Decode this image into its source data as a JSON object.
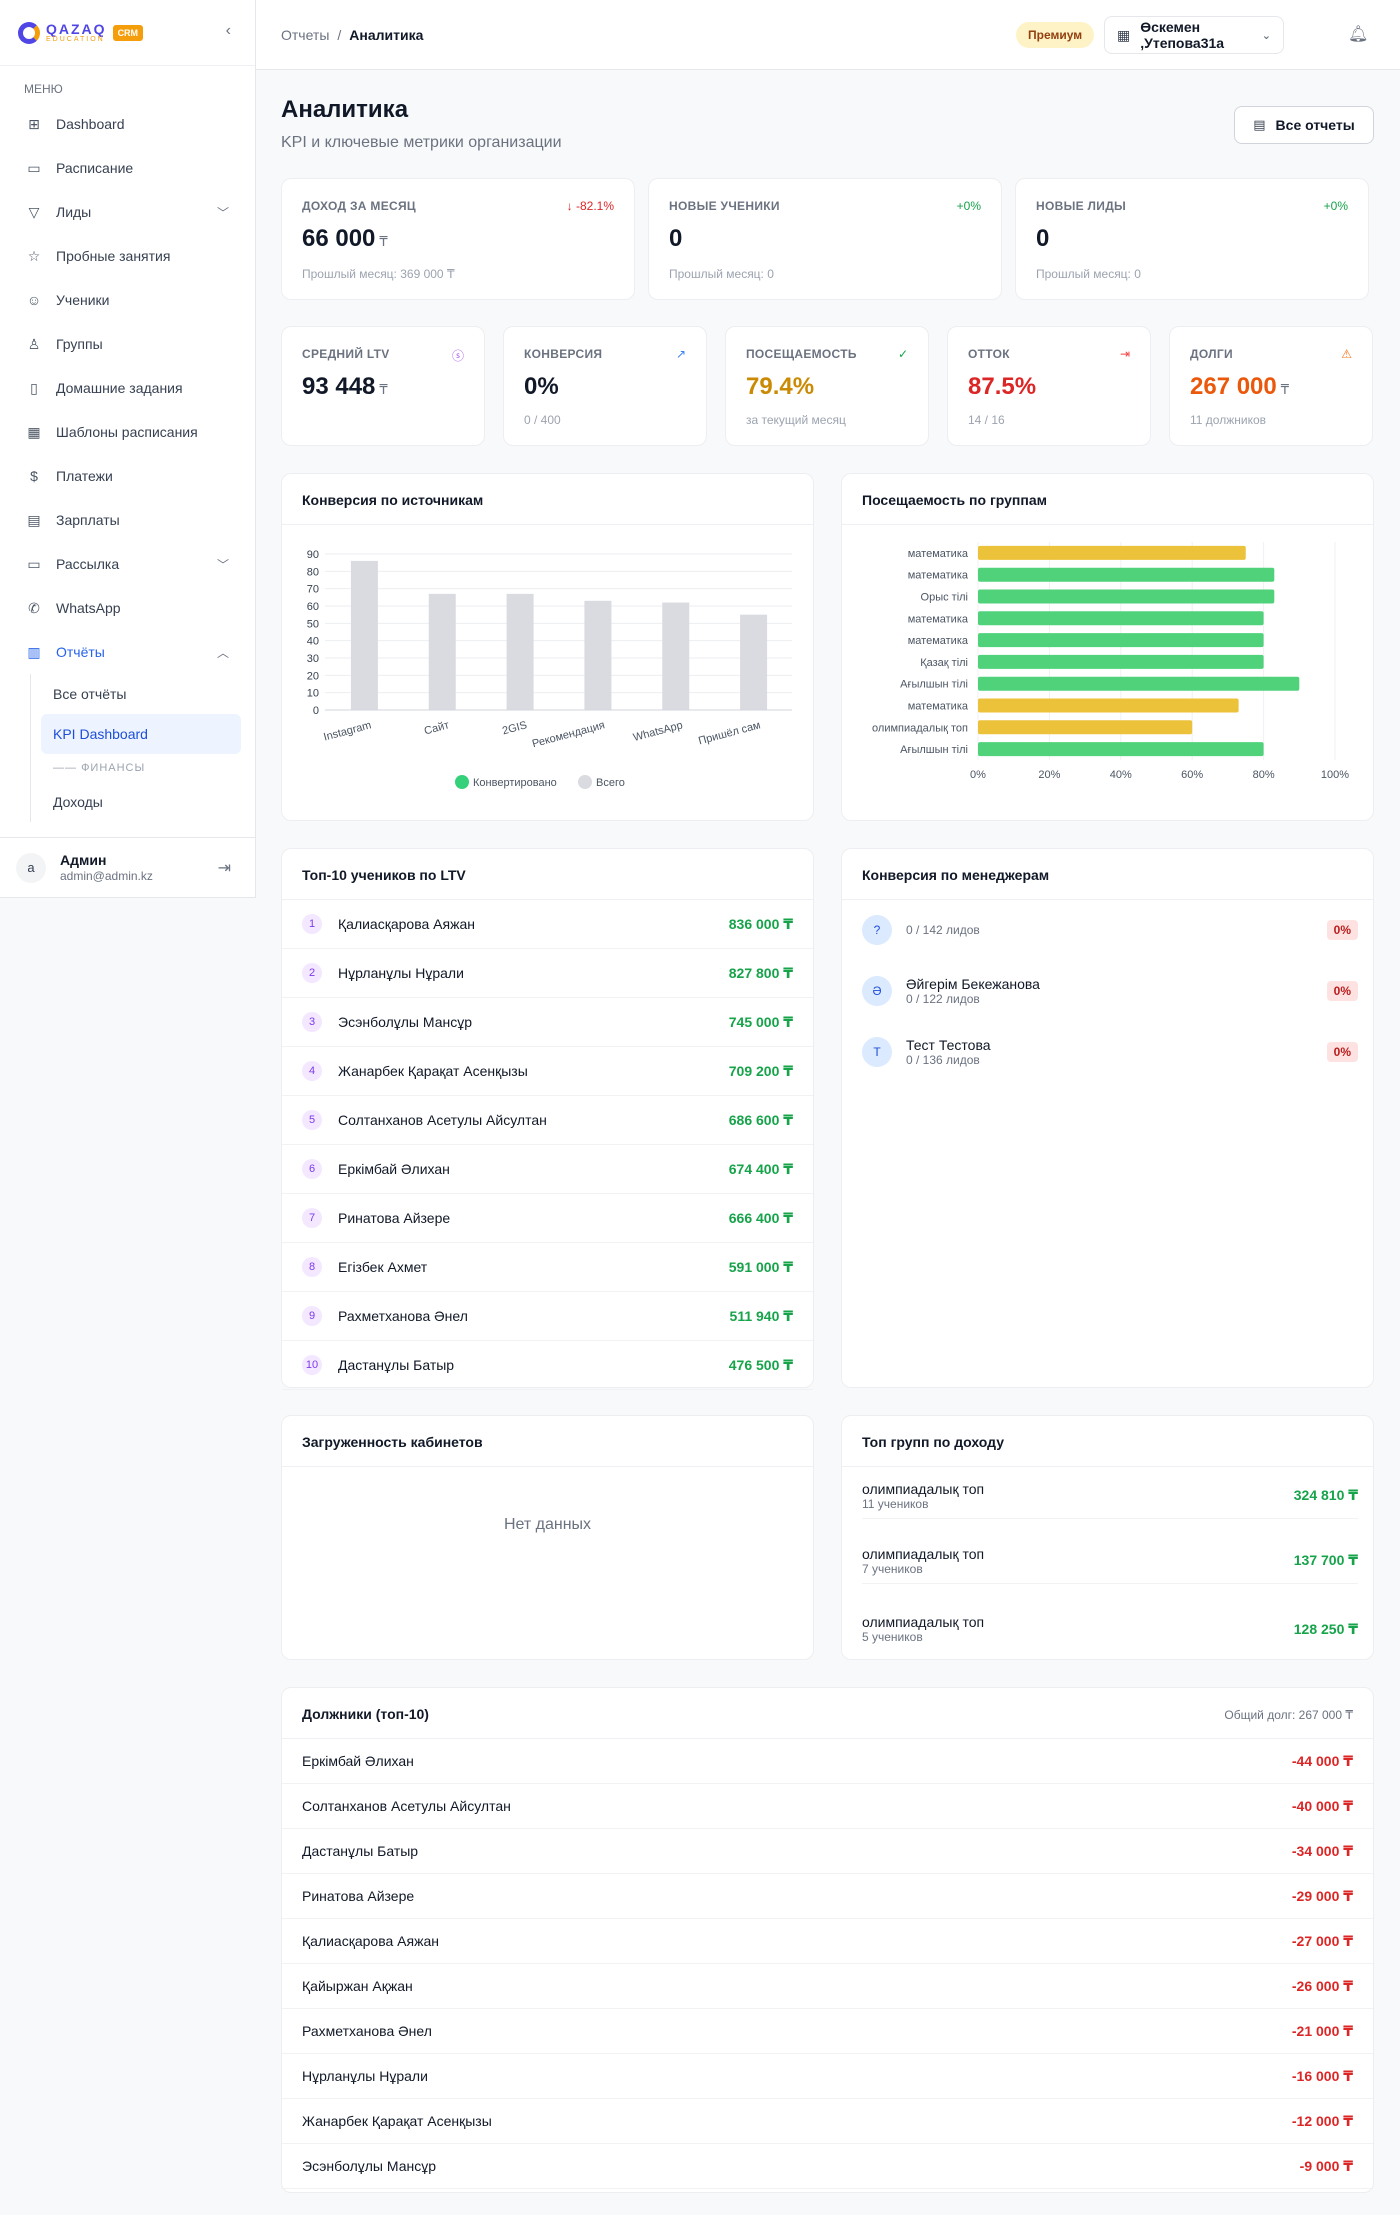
{
  "brand": {
    "name": "QAZAQ",
    "sub": "EDUCATION",
    "badge": "CRM"
  },
  "sidebar": {
    "menu_title": "МЕНЮ",
    "items": [
      {
        "label": "Dashboard",
        "icon": "dashboard-icon"
      },
      {
        "label": "Расписание",
        "icon": "calendar-icon"
      },
      {
        "label": "Лиды",
        "icon": "filter-icon",
        "chevron": "down"
      },
      {
        "label": "Пробные занятия",
        "icon": "star-icon"
      },
      {
        "label": "Ученики",
        "icon": "users-icon"
      },
      {
        "label": "Группы",
        "icon": "group-icon"
      },
      {
        "label": "Домашние задания",
        "icon": "clipboard-icon"
      },
      {
        "label": "Шаблоны расписания",
        "icon": "template-icon"
      },
      {
        "label": "Платежи",
        "icon": "dollar-icon"
      },
      {
        "label": "Зарплаты",
        "icon": "wallet-icon"
      },
      {
        "label": "Рассылка",
        "icon": "message-icon",
        "chevron": "down"
      },
      {
        "label": "WhatsApp",
        "icon": "phone-icon"
      },
      {
        "label": "Отчёты",
        "icon": "bar-chart-icon",
        "chevron": "up",
        "active": true
      }
    ],
    "sub_items": [
      {
        "label": "Все отчёты"
      },
      {
        "label": "KPI Dashboard",
        "active": true
      }
    ],
    "sub_section": "ФИНАНСЫ",
    "sub_items2": [
      {
        "label": "Доходы"
      }
    ],
    "user": {
      "initial": "a",
      "name": "Админ",
      "email": "admin@admin.kz"
    }
  },
  "topbar": {
    "crumb_parent": "Отчеты",
    "crumb_sep": "/",
    "crumb_current": "Аналитика",
    "premium": "Премиум",
    "branch": "Өскемен ,Утепова31а"
  },
  "page": {
    "title": "Аналитика",
    "subtitle": "KPI и ключевые метрики организации",
    "all_reports": "Все отчеты"
  },
  "kpi_top": [
    {
      "label": "Доход за месяц",
      "value": "66 000",
      "unit": "₸",
      "sub": "Прошлый месяц: 369 000 ₸",
      "badge": "↓ -82.1%",
      "badge_color": "#dc2626"
    },
    {
      "label": "Новые ученики",
      "value": "0",
      "unit": "",
      "sub": "Прошлый месяц: 0",
      "badge": "+0%",
      "badge_color": "#16a34a"
    },
    {
      "label": "Новые лиды",
      "value": "0",
      "unit": "",
      "sub": "Прошлый месяц: 0",
      "badge": "+0%",
      "badge_color": "#16a34a"
    }
  ],
  "kpi_mid": [
    {
      "label": "Средний LTV",
      "value": "93 448",
      "unit": "₸",
      "sub": "",
      "color": "#111827",
      "icon": "coin-icon",
      "icon_color": "#a855f7"
    },
    {
      "label": "Конверсия",
      "value": "0%",
      "unit": "",
      "sub": "0 / 400",
      "color": "#111827",
      "icon": "trend-up-icon",
      "icon_color": "#3b82f6"
    },
    {
      "label": "Посещаемость",
      "value": "79.4%",
      "unit": "",
      "sub": "за текущий месяц",
      "color": "#ca8a04",
      "icon": "check-circle-icon",
      "icon_color": "#16a34a"
    },
    {
      "label": "Отток",
      "value": "87.5%",
      "unit": "",
      "sub": "14 / 16",
      "color": "#dc2626",
      "icon": "exit-icon",
      "icon_color": "#ef4444"
    },
    {
      "label": "Долги",
      "value": "267 000",
      "unit": "₸",
      "sub": "11 должников",
      "color": "#ea580c",
      "icon": "warning-icon",
      "icon_color": "#f97316"
    }
  ],
  "charts": {
    "conv_title": "Конверсия по источникам",
    "att_title": "Посещаемость по группам"
  },
  "chart_data": [
    {
      "type": "bar",
      "categories": [
        "Instagram",
        "Сайт",
        "2GIS",
        "Рекомендация",
        "WhatsApp",
        "Пришёл сам"
      ],
      "series": [
        {
          "name": "Конвертировано",
          "values": [
            0,
            0,
            0,
            0,
            0,
            0
          ],
          "color": "#34d17a"
        },
        {
          "name": "Всего",
          "values": [
            86,
            67,
            67,
            63,
            62,
            55
          ],
          "color": "#d9dbe0"
        }
      ],
      "ylim": [
        0,
        90
      ],
      "yticks": [
        0,
        10,
        20,
        30,
        40,
        50,
        60,
        70,
        80,
        90
      ],
      "legend": "bottom"
    },
    {
      "type": "bar",
      "orientation": "horizontal",
      "categories": [
        "математика",
        "математика",
        "Орыс тілі",
        "математика",
        "математика",
        "Қазақ тілі",
        "Ағылшын тілі",
        "математика",
        "олимпиадалық топ",
        "Ағылшын тілі"
      ],
      "values": [
        75,
        83,
        83,
        80,
        80,
        80,
        90,
        73,
        60,
        80
      ],
      "colors": [
        "#ecc23a",
        "#4fd27a",
        "#4fd27a",
        "#4fd27a",
        "#4fd27a",
        "#4fd27a",
        "#4fd27a",
        "#ecc23a",
        "#ecc23a",
        "#4fd27a"
      ],
      "xlim": [
        0,
        100
      ],
      "xticks": [
        "0%",
        "20%",
        "40%",
        "60%",
        "80%",
        "100%"
      ]
    }
  ],
  "ltv": {
    "title": "Топ-10 учеников по LTV",
    "rows": [
      {
        "n": "1",
        "name": "Қалиасқарова Аяжан",
        "v": "836 000 ₸"
      },
      {
        "n": "2",
        "name": "Нұрланұлы Нұрали",
        "v": "827 800 ₸"
      },
      {
        "n": "3",
        "name": "Эсэнболұлы Мансұр",
        "v": "745 000 ₸"
      },
      {
        "n": "4",
        "name": "Жанарбек Қарақат Асенқызы",
        "v": "709 200 ₸"
      },
      {
        "n": "5",
        "name": "Солтанханов Асетулы Айсултан",
        "v": "686 600 ₸"
      },
      {
        "n": "6",
        "name": "Еркімбай Әлихан",
        "v": "674 400 ₸"
      },
      {
        "n": "7",
        "name": "Ринатова Айзере",
        "v": "666 400 ₸"
      },
      {
        "n": "8",
        "name": "Егізбек Ахмет",
        "v": "591 000 ₸"
      },
      {
        "n": "9",
        "name": "Рахметханова Әнел",
        "v": "511 940 ₸"
      },
      {
        "n": "10",
        "name": "Дастанұлы Батыр",
        "v": "476 500 ₸"
      }
    ]
  },
  "managers": {
    "title": "Конверсия по менеджерам",
    "rows": [
      {
        "avatar": "?",
        "name": "",
        "sub": "0 / 142 лидов",
        "badge": "0%"
      },
      {
        "avatar": "Ә",
        "name": "Әйгерім Бекежанова",
        "sub": "0 / 122 лидов",
        "badge": "0%"
      },
      {
        "avatar": "Т",
        "name": "Тест Тестова",
        "sub": "0 / 136 лидов",
        "badge": "0%"
      }
    ]
  },
  "rooms": {
    "title": "Загруженность кабинетов",
    "empty": "Нет данных"
  },
  "groups": {
    "title": "Топ групп по доходу",
    "rows": [
      {
        "name": "олимпиадалық топ",
        "sub": "11 учеников",
        "v": "324 810 ₸"
      },
      {
        "name": "олимпиадалық топ",
        "sub": "7 учеников",
        "v": "137 700 ₸"
      },
      {
        "name": "олимпиадалық топ",
        "sub": "5 учеников",
        "v": "128 250 ₸"
      }
    ]
  },
  "debtors": {
    "title": "Должники (топ-10)",
    "total": "Общий долг: 267 000 ₸",
    "rows": [
      {
        "name": "Еркімбай Әлихан",
        "v": "-44 000 ₸"
      },
      {
        "name": "Солтанханов Асетулы Айсултан",
        "v": "-40 000 ₸"
      },
      {
        "name": "Дастанұлы Батыр",
        "v": "-34 000 ₸"
      },
      {
        "name": "Ринатова Айзере",
        "v": "-29 000 ₸"
      },
      {
        "name": "Қалиасқарова Аяжан",
        "v": "-27 000 ₸"
      },
      {
        "name": "Қайыржан Ақжан",
        "v": "-26 000 ₸"
      },
      {
        "name": "Рахметханова Әнел",
        "v": "-21 000 ₸"
      },
      {
        "name": "Нұрланұлы Нұрали",
        "v": "-16 000 ₸"
      },
      {
        "name": "Жанарбек Қарақат Асенқызы",
        "v": "-12 000 ₸"
      },
      {
        "name": "Эсэнболұлы Мансұр",
        "v": "-9 000 ₸"
      }
    ]
  }
}
